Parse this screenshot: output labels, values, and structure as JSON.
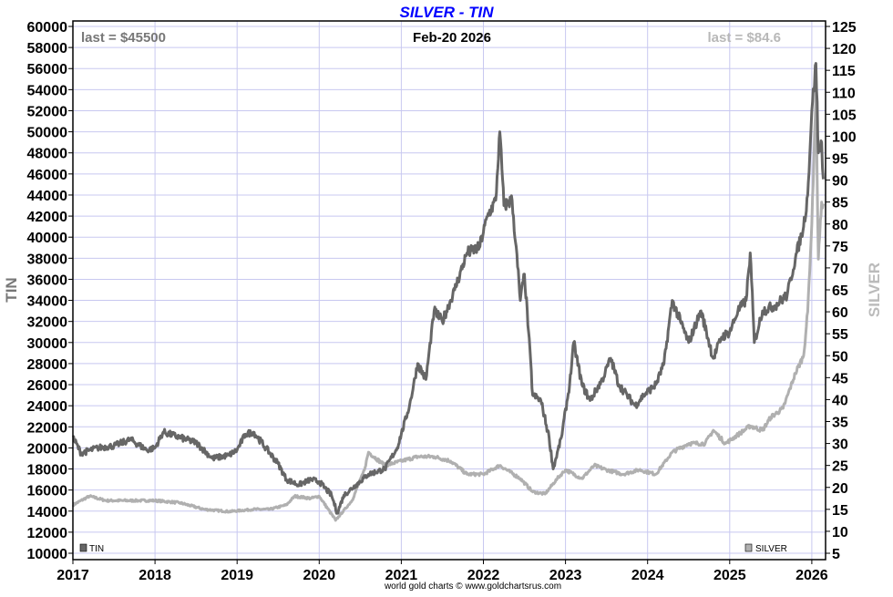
{
  "chart_data": {
    "type": "line",
    "title": "SILVER - TIN",
    "date_label": "Feb-20  2026",
    "footer": "world gold charts © www.goldchartsrus.com",
    "left_axis": {
      "label": "TIN",
      "range": [
        10000,
        60000
      ],
      "step": 2000
    },
    "right_axis": {
      "label": "SILVER",
      "range": [
        5,
        125
      ],
      "step": 5
    },
    "x_range": [
      2017,
      2026.17
    ],
    "x_ticks": [
      "2017",
      "2018",
      "2019",
      "2020",
      "2021",
      "2022",
      "2023",
      "2024",
      "2025",
      "2026"
    ],
    "grid": true,
    "colors": {
      "title": "#0000ff",
      "tin": "#666666",
      "silver": "#b0b0b0",
      "grid": "#c8c8f0"
    },
    "series": [
      {
        "name": "TIN",
        "axis": "left",
        "last_label": "last = $45500",
        "points": [
          [
            2017.0,
            21000
          ],
          [
            2017.1,
            19500
          ],
          [
            2017.3,
            20000
          ],
          [
            2017.5,
            20200
          ],
          [
            2017.7,
            20800
          ],
          [
            2017.9,
            19800
          ],
          [
            2018.0,
            20000
          ],
          [
            2018.1,
            21500
          ],
          [
            2018.3,
            21000
          ],
          [
            2018.5,
            20500
          ],
          [
            2018.7,
            19000
          ],
          [
            2018.9,
            19300
          ],
          [
            2019.0,
            19800
          ],
          [
            2019.1,
            21300
          ],
          [
            2019.2,
            21500
          ],
          [
            2019.35,
            20000
          ],
          [
            2019.5,
            18500
          ],
          [
            2019.6,
            17000
          ],
          [
            2019.75,
            16500
          ],
          [
            2019.9,
            17000
          ],
          [
            2020.0,
            16800
          ],
          [
            2020.15,
            15500
          ],
          [
            2020.22,
            13800
          ],
          [
            2020.3,
            15500
          ],
          [
            2020.45,
            16500
          ],
          [
            2020.6,
            17500
          ],
          [
            2020.8,
            18000
          ],
          [
            2020.95,
            20000
          ],
          [
            2021.1,
            24000
          ],
          [
            2021.2,
            28000
          ],
          [
            2021.3,
            26500
          ],
          [
            2021.4,
            33000
          ],
          [
            2021.5,
            32000
          ],
          [
            2021.65,
            35000
          ],
          [
            2021.8,
            38500
          ],
          [
            2021.95,
            39000
          ],
          [
            2022.05,
            42000
          ],
          [
            2022.15,
            43500
          ],
          [
            2022.2,
            50000
          ],
          [
            2022.25,
            43000
          ],
          [
            2022.35,
            43500
          ],
          [
            2022.45,
            34000
          ],
          [
            2022.5,
            36500
          ],
          [
            2022.55,
            31000
          ],
          [
            2022.6,
            25000
          ],
          [
            2022.7,
            24500
          ],
          [
            2022.8,
            21000
          ],
          [
            2022.85,
            18000
          ],
          [
            2022.95,
            21000
          ],
          [
            2023.05,
            26000
          ],
          [
            2023.1,
            30000
          ],
          [
            2023.2,
            26000
          ],
          [
            2023.3,
            24500
          ],
          [
            2023.45,
            26500
          ],
          [
            2023.55,
            28500
          ],
          [
            2023.65,
            26000
          ],
          [
            2023.75,
            25000
          ],
          [
            2023.85,
            24000
          ],
          [
            2023.95,
            25000
          ],
          [
            2024.1,
            26000
          ],
          [
            2024.2,
            28000
          ],
          [
            2024.3,
            34000
          ],
          [
            2024.4,
            32000
          ],
          [
            2024.5,
            30000
          ],
          [
            2024.65,
            33000
          ],
          [
            2024.8,
            28500
          ],
          [
            2024.9,
            30500
          ],
          [
            2025.0,
            31000
          ],
          [
            2025.1,
            33000
          ],
          [
            2025.2,
            34000
          ],
          [
            2025.25,
            38500
          ],
          [
            2025.3,
            30000
          ],
          [
            2025.4,
            33000
          ],
          [
            2025.55,
            33500
          ],
          [
            2025.7,
            34500
          ],
          [
            2025.8,
            38000
          ],
          [
            2025.9,
            41000
          ],
          [
            2025.95,
            44000
          ],
          [
            2026.0,
            52000
          ],
          [
            2026.05,
            56500
          ],
          [
            2026.08,
            48000
          ],
          [
            2026.12,
            49000
          ],
          [
            2026.14,
            45500
          ]
        ]
      },
      {
        "name": "SILVER",
        "axis": "right",
        "last_label": "last = $84.6",
        "points": [
          [
            2017.0,
            16
          ],
          [
            2017.2,
            18
          ],
          [
            2017.4,
            17
          ],
          [
            2017.6,
            17
          ],
          [
            2017.8,
            17
          ],
          [
            2018.0,
            17
          ],
          [
            2018.3,
            16.5
          ],
          [
            2018.6,
            15
          ],
          [
            2018.9,
            14.5
          ],
          [
            2019.2,
            15
          ],
          [
            2019.4,
            15
          ],
          [
            2019.6,
            16
          ],
          [
            2019.7,
            18
          ],
          [
            2019.9,
            17.5
          ],
          [
            2020.0,
            18
          ],
          [
            2020.2,
            12.5
          ],
          [
            2020.4,
            17
          ],
          [
            2020.55,
            24
          ],
          [
            2020.6,
            28
          ],
          [
            2020.8,
            25
          ],
          [
            2021.0,
            26
          ],
          [
            2021.2,
            27
          ],
          [
            2021.4,
            27
          ],
          [
            2021.6,
            26
          ],
          [
            2021.8,
            23
          ],
          [
            2022.0,
            23
          ],
          [
            2022.2,
            25
          ],
          [
            2022.45,
            22
          ],
          [
            2022.6,
            19
          ],
          [
            2022.75,
            18.5
          ],
          [
            2022.9,
            22
          ],
          [
            2023.0,
            24
          ],
          [
            2023.2,
            22
          ],
          [
            2023.35,
            25
          ],
          [
            2023.5,
            24
          ],
          [
            2023.7,
            23
          ],
          [
            2023.9,
            24
          ],
          [
            2024.1,
            23
          ],
          [
            2024.3,
            28
          ],
          [
            2024.5,
            30
          ],
          [
            2024.7,
            30
          ],
          [
            2024.8,
            33
          ],
          [
            2024.95,
            30
          ],
          [
            2025.1,
            32
          ],
          [
            2025.25,
            34
          ],
          [
            2025.4,
            33
          ],
          [
            2025.5,
            36
          ],
          [
            2025.65,
            38
          ],
          [
            2025.8,
            46
          ],
          [
            2025.9,
            50
          ],
          [
            2025.95,
            60
          ],
          [
            2026.0,
            80
          ],
          [
            2026.05,
            110
          ],
          [
            2026.08,
            72
          ],
          [
            2026.12,
            85
          ],
          [
            2026.14,
            84.6
          ]
        ]
      }
    ]
  }
}
